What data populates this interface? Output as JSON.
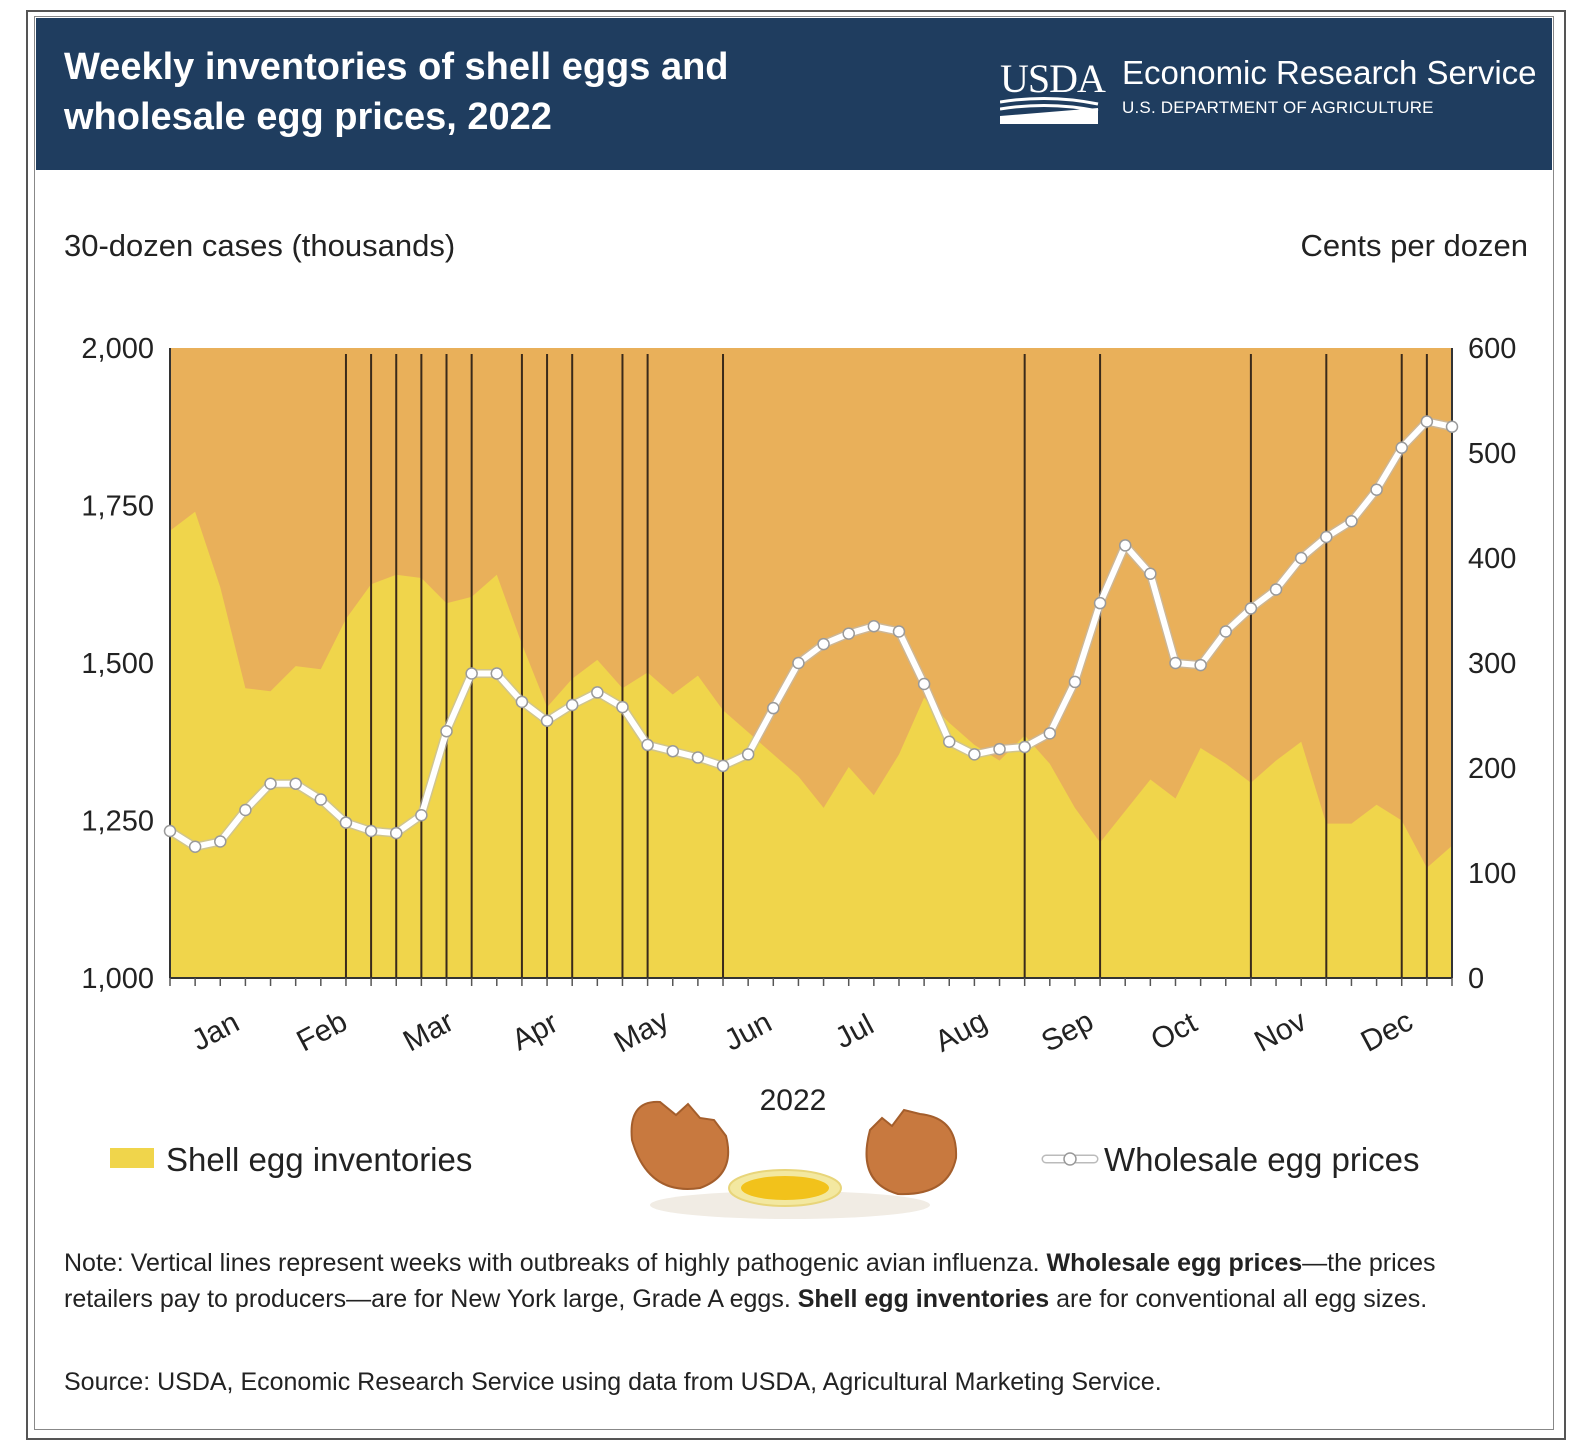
{
  "header": {
    "title_line1": "Weekly inventories of shell eggs and",
    "title_line2": "wholesale egg prices, 2022",
    "logo_text": "USDA",
    "agency": "Economic Research Service",
    "department": "U.S. DEPARTMENT OF AGRICULTURE"
  },
  "colors": {
    "header_bg": "#1f3d5f",
    "plot_bg": "#e9b05a",
    "inventory_fill": "#f0d54b",
    "price_line": "#ffffff",
    "outbreak_line": "#3a2a1a"
  },
  "legend": {
    "inventory_label": "Shell egg inventories",
    "price_label": "Wholesale egg prices"
  },
  "footer": {
    "note_prefix": "Note: Vertical lines represent weeks with outbreaks of highly pathogenic avian influenza. ",
    "note_bold1": "Wholesale egg prices",
    "note_mid": "—the prices retailers pay to producers—are for New York large, Grade A eggs. ",
    "note_bold2": "Shell egg inventories",
    "note_end": " are for conventional all egg sizes.",
    "source": "Source: USDA, Economic Research Service using data from USDA, Agricultural Marketing Service."
  },
  "chart_data": {
    "type": "area+line",
    "left_axis_title": "30-dozen cases (thousands)",
    "right_axis_title": "Cents per dozen",
    "x_label": "2022",
    "months": [
      "Jan",
      "Feb",
      "Mar",
      "Apr",
      "May",
      "Jun",
      "Jul",
      "Aug",
      "Sep",
      "Oct",
      "Nov",
      "Dec"
    ],
    "left_ylim": [
      1000,
      2000
    ],
    "left_ticks": [
      1000,
      1250,
      1500,
      1750,
      2000
    ],
    "left_tick_labels": [
      "1,000",
      "1,250",
      "1,500",
      "1,750",
      "2,000"
    ],
    "right_ylim": [
      0,
      600
    ],
    "right_ticks": [
      0,
      100,
      200,
      300,
      400,
      500,
      600
    ],
    "right_tick_labels": [
      "0",
      "100",
      "200",
      "300",
      "400",
      "500",
      "600"
    ],
    "weeks": 52,
    "inventories": [
      1710,
      1740,
      1620,
      1460,
      1455,
      1495,
      1490,
      1570,
      1625,
      1640,
      1635,
      1595,
      1605,
      1640,
      1530,
      1430,
      1475,
      1505,
      1460,
      1485,
      1450,
      1480,
      1425,
      1390,
      1355,
      1320,
      1270,
      1335,
      1290,
      1355,
      1445,
      1405,
      1370,
      1345,
      1385,
      1340,
      1270,
      1215,
      1265,
      1315,
      1285,
      1365,
      1340,
      1310,
      1345,
      1375,
      1245,
      1245,
      1275,
      1250,
      1175,
      1210
    ],
    "prices": [
      140,
      125,
      130,
      160,
      185,
      185,
      170,
      148,
      140,
      138,
      155,
      235,
      290,
      290,
      263,
      245,
      260,
      272,
      258,
      222,
      216,
      210,
      202,
      213,
      257,
      300,
      318,
      328,
      335,
      330,
      280,
      225,
      213,
      218,
      220,
      233,
      282,
      357,
      412,
      385,
      300,
      298,
      330,
      352,
      370,
      400,
      420,
      435,
      465,
      505,
      530,
      525
    ],
    "outbreak_weeks": [
      7,
      8,
      9,
      10,
      11,
      12,
      14,
      15,
      16,
      18,
      19,
      22,
      34,
      37,
      43,
      46,
      49,
      50
    ]
  }
}
